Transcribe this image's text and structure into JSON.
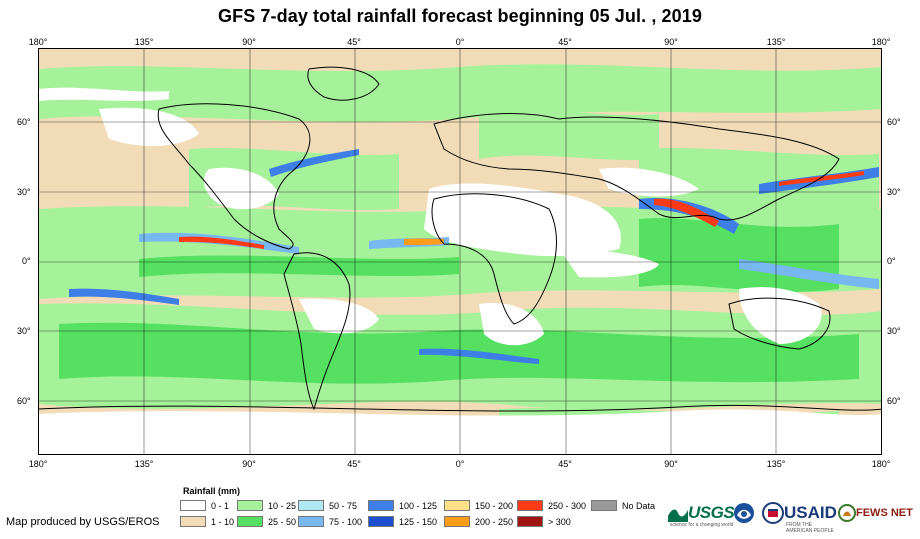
{
  "title": "GFS 7-day total rainfall forecast beginning 05 Jul. , 2019",
  "lon_labels": [
    "180°",
    "135°",
    "90°",
    "45°",
    "0°",
    "45°",
    "90°",
    "135°",
    "180°"
  ],
  "lat_labels": [
    "60°",
    "30°",
    "0°",
    "30°",
    "60°"
  ],
  "legend": {
    "title": "Rainfall (mm)",
    "items": [
      {
        "label": "0 - 1",
        "color": "#ffffff"
      },
      {
        "label": "1 - 10",
        "color": "#f2dcb8"
      },
      {
        "label": "10 - 25",
        "color": "#a6f29a"
      },
      {
        "label": "25 - 50",
        "color": "#55e062"
      },
      {
        "label": "50 - 75",
        "color": "#aee8f5"
      },
      {
        "label": "75 - 100",
        "color": "#78b8f0"
      },
      {
        "label": "100 - 125",
        "color": "#3d7fe6"
      },
      {
        "label": "125 - 150",
        "color": "#1b4fd0"
      },
      {
        "label": "150 - 200",
        "color": "#ffe08a"
      },
      {
        "label": "200 - 250",
        "color": "#ff9d1a"
      },
      {
        "label": "250 - 300",
        "color": "#ff3a14"
      },
      {
        "label": "> 300",
        "color": "#a01414"
      },
      {
        "label": "No Data",
        "color": "#9a9a9a"
      }
    ]
  },
  "credit": "Map produced by USGS/EROS",
  "logos": {
    "usgs": "USGS",
    "usgs_tagline": "science for a changing world",
    "usaid": "USAID",
    "usaid_tagline": "FROM THE AMERICAN PEOPLE",
    "fews": "FEWS NET"
  }
}
